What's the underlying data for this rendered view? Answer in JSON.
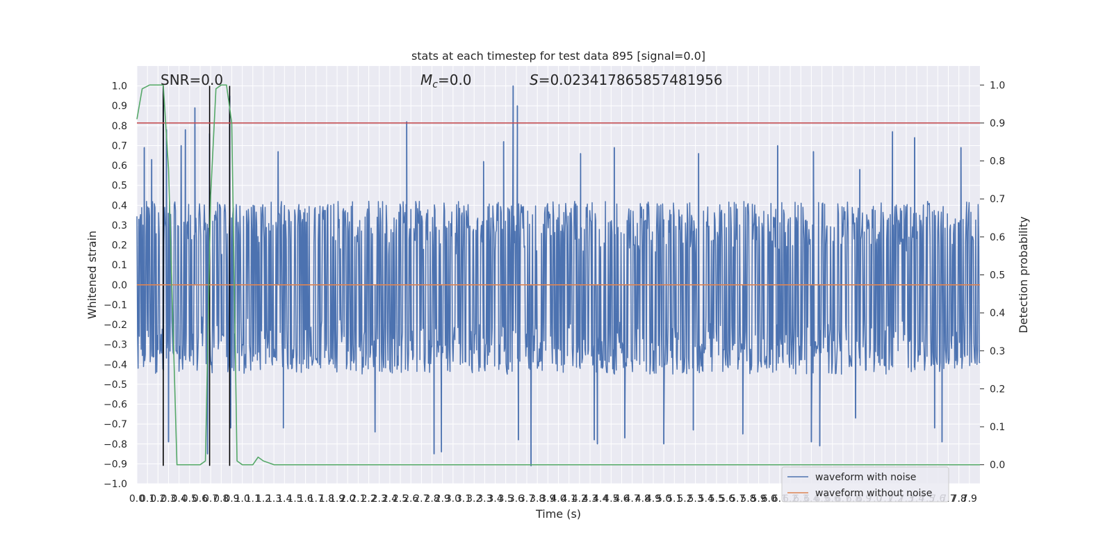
{
  "chart_data": {
    "type": "line",
    "title": "stats at each timestep for test data 895 [signal=0.0]",
    "xlabel": "Time (s)",
    "ylabel_left": "Whitened strain",
    "ylabel_right": "Detection probability",
    "xlim": [
      0.0,
      8.0
    ],
    "ylim_left": [
      -1.0,
      1.1
    ],
    "ylim_right": [
      -0.05,
      1.05
    ],
    "xticks": [
      "0.0",
      "0.1",
      "0.2",
      "0.3",
      "0.4",
      "0.5",
      "0.6",
      "0.7",
      "0.8",
      "0.9",
      "1.0",
      "1.1",
      "1.2",
      "1.3",
      "1.4",
      "1.5",
      "1.6",
      "1.7",
      "1.8",
      "1.9",
      "2.0",
      "2.1",
      "2.2",
      "2.3",
      "2.4",
      "2.5",
      "2.6",
      "2.7",
      "2.8",
      "2.9",
      "3.0",
      "3.1",
      "3.2",
      "3.3",
      "3.4",
      "3.5",
      "3.6",
      "3.7",
      "3.8",
      "3.9",
      "4.0",
      "4.1",
      "4.2",
      "4.3",
      "4.4",
      "4.5",
      "4.6",
      "4.7",
      "4.8",
      "4.9",
      "5.0",
      "5.1",
      "5.2",
      "5.3",
      "5.4",
      "5.5",
      "5.6",
      "5.7",
      "5.8",
      "5.9",
      "6.0",
      "6.1",
      "6.2",
      "6.3",
      "6.4",
      "6.5",
      "6.6",
      "6.7",
      "6.8",
      "6.9",
      "7.0",
      "7.1",
      "7.2",
      "7.3",
      "7.4",
      "7.5",
      "7.6",
      "7.7",
      "7.8",
      "7.9"
    ],
    "yticks_left": [
      "1.0",
      "0.9",
      "0.8",
      "0.7",
      "0.6",
      "0.5",
      "0.4",
      "0.3",
      "0.2",
      "0.1",
      "0.0",
      "−0.1",
      "−0.2",
      "−0.3",
      "−0.4",
      "−0.5",
      "−0.6",
      "−0.7",
      "−0.8",
      "−0.9",
      "−1.0"
    ],
    "yticks_right": [
      "1.0",
      "0.9",
      "0.8",
      "0.7",
      "0.6",
      "0.5",
      "0.4",
      "0.3",
      "0.2",
      "0.1",
      "0.0"
    ],
    "grid": true,
    "legend_position": "lower-right",
    "annotations": {
      "snr": "SNR=0.0",
      "mc_symbol": "M",
      "mc_sub": "c",
      "mc_value": "=0.0",
      "s_symbol": "S",
      "s_value": "=0.023417865857481956"
    },
    "series": [
      {
        "name": "waveform with noise",
        "color": "#4c72b0",
        "style": "dense-noise",
        "typical_range": [
          -0.45,
          0.42
        ],
        "peaks": [
          {
            "x": 0.07,
            "y": 0.69
          },
          {
            "x": 0.14,
            "y": 0.63
          },
          {
            "x": 0.25,
            "y": 0.99
          },
          {
            "x": 0.28,
            "y": 0.78
          },
          {
            "x": 0.42,
            "y": 0.7
          },
          {
            "x": 0.46,
            "y": 0.78
          },
          {
            "x": 0.55,
            "y": 0.89
          },
          {
            "x": 0.69,
            "y": 0.76
          },
          {
            "x": 0.88,
            "y": 0.95
          },
          {
            "x": 1.34,
            "y": 0.67
          },
          {
            "x": 2.56,
            "y": 0.82
          },
          {
            "x": 3.29,
            "y": 0.62
          },
          {
            "x": 3.48,
            "y": 0.72
          },
          {
            "x": 3.57,
            "y": 1.0
          },
          {
            "x": 3.61,
            "y": 0.9
          },
          {
            "x": 4.21,
            "y": 0.66
          },
          {
            "x": 4.53,
            "y": 0.69
          },
          {
            "x": 5.33,
            "y": 0.66
          },
          {
            "x": 6.08,
            "y": 0.7
          },
          {
            "x": 6.42,
            "y": 0.67
          },
          {
            "x": 6.86,
            "y": 0.58
          },
          {
            "x": 7.17,
            "y": 0.77
          },
          {
            "x": 7.38,
            "y": 0.74
          },
          {
            "x": 7.82,
            "y": 0.69
          },
          {
            "x": 0.3,
            "y": -0.79
          },
          {
            "x": 0.67,
            "y": -0.85
          },
          {
            "x": 0.89,
            "y": -0.72
          },
          {
            "x": 1.39,
            "y": -0.72
          },
          {
            "x": 2.26,
            "y": -0.74
          },
          {
            "x": 2.82,
            "y": -0.85
          },
          {
            "x": 2.89,
            "y": -0.84
          },
          {
            "x": 3.62,
            "y": -0.78
          },
          {
            "x": 3.74,
            "y": -0.91
          },
          {
            "x": 4.34,
            "y": -0.78
          },
          {
            "x": 4.37,
            "y": -0.8
          },
          {
            "x": 4.63,
            "y": -0.77
          },
          {
            "x": 5.0,
            "y": -0.8
          },
          {
            "x": 5.28,
            "y": -0.73
          },
          {
            "x": 5.75,
            "y": -0.75
          },
          {
            "x": 6.4,
            "y": -0.79
          },
          {
            "x": 6.48,
            "y": -0.81
          },
          {
            "x": 6.82,
            "y": -0.67
          },
          {
            "x": 7.57,
            "y": -0.72
          },
          {
            "x": 7.64,
            "y": -0.79
          }
        ]
      },
      {
        "name": "waveform without noise",
        "color": "#dd8452",
        "x": [
          0.0,
          8.0
        ],
        "y": [
          0.0,
          0.0
        ]
      },
      {
        "color": "#55a868",
        "axis": "right",
        "x": [
          0.0,
          0.05,
          0.12,
          0.2,
          0.25,
          0.3,
          0.38,
          0.4,
          0.45,
          0.5,
          0.6,
          0.65,
          0.7,
          0.75,
          0.8,
          0.85,
          0.9,
          0.95,
          1.0,
          1.05,
          1.1,
          1.15,
          1.2,
          1.3,
          1.4,
          8.0
        ],
        "y": [
          0.91,
          0.99,
          1.0,
          1.0,
          1.0,
          0.78,
          0.0,
          0.0,
          0.0,
          0.0,
          0.0,
          0.01,
          0.71,
          0.99,
          1.0,
          1.0,
          0.9,
          0.01,
          0.0,
          0.0,
          0.0,
          0.02,
          0.01,
          0.0,
          0.0,
          0.0
        ]
      },
      {
        "color": "#c44e52",
        "axis": "right",
        "x": [
          0.0,
          8.0
        ],
        "y": [
          0.9,
          0.9
        ]
      }
    ],
    "vlines": [
      {
        "x": 0.25,
        "y0": -0.91,
        "y1": 1.0,
        "color": "#000000"
      },
      {
        "x": 0.69,
        "y0": -0.91,
        "y1": 1.0,
        "color": "#000000"
      },
      {
        "x": 0.88,
        "y0": -0.91,
        "y1": 1.0,
        "color": "#000000"
      }
    ]
  }
}
